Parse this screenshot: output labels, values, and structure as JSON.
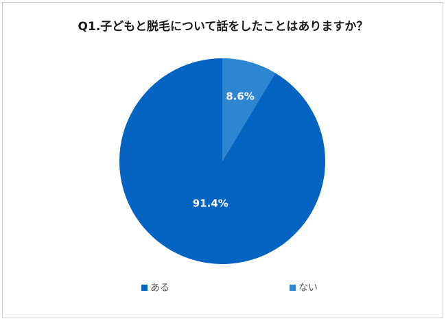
{
  "chart_data": {
    "type": "pie",
    "title": "Q1.子どもと脱毛について話をしたことはありますか？",
    "categories": [
      "ある",
      "ない"
    ],
    "values": [
      91.4,
      8.6
    ],
    "data_labels": [
      "91.4%",
      "8.6%"
    ],
    "colors": [
      "#0563C1",
      "#2E86D1"
    ],
    "legend_position": "bottom",
    "start_angle": "12 o'clock",
    "direction": "counter-clockwise"
  }
}
